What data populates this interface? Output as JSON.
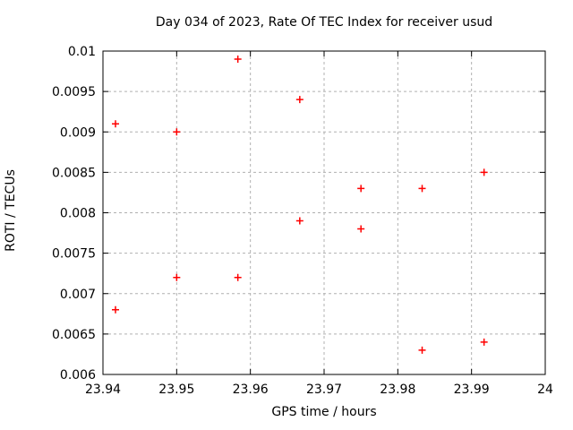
{
  "colors": {
    "background": "#ffffff",
    "axis": "#000000",
    "grid": "#b0b0b0",
    "marker": "#ff0000"
  },
  "chart_data": {
    "type": "scatter",
    "title": "Day 034 of 2023, Rate Of TEC Index for receiver usud",
    "xlabel": "GPS time / hours",
    "ylabel": "ROTI / TECUs",
    "xlim": [
      23.94,
      24
    ],
    "ylim": [
      0.006,
      0.01
    ],
    "xticks": [
      23.94,
      23.95,
      23.96,
      23.97,
      23.98,
      23.99,
      24
    ],
    "xtick_labels": [
      "23.94",
      "23.95",
      "23.96",
      "23.97",
      "23.98",
      "23.99",
      "24"
    ],
    "yticks": [
      0.006,
      0.0065,
      0.007,
      0.0075,
      0.008,
      0.0085,
      0.009,
      0.0095,
      0.01
    ],
    "ytick_labels": [
      "0.006",
      "0.0065",
      "0.007",
      "0.0075",
      "0.008",
      "0.0085",
      "0.009",
      "0.0095",
      "0.01"
    ],
    "grid": true,
    "legend": "none",
    "marker": "plus",
    "points": [
      [
        23.9417,
        0.0091
      ],
      [
        23.9417,
        0.0068
      ],
      [
        23.95,
        0.009
      ],
      [
        23.95,
        0.0072
      ],
      [
        23.9583,
        0.0099
      ],
      [
        23.9583,
        0.0072
      ],
      [
        23.9667,
        0.0094
      ],
      [
        23.9667,
        0.0079
      ],
      [
        23.975,
        0.0083
      ],
      [
        23.975,
        0.0078
      ],
      [
        23.9833,
        0.0083
      ],
      [
        23.9833,
        0.0063
      ],
      [
        23.9917,
        0.0085
      ],
      [
        23.9917,
        0.0064
      ]
    ]
  }
}
